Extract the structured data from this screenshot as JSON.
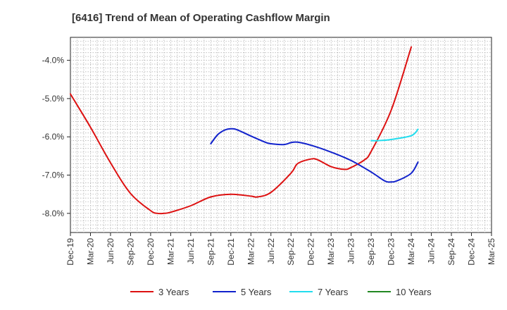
{
  "chart_data": {
    "type": "line",
    "title": "[6416]  Trend of Mean of Operating Cashflow Margin",
    "xlabel": "",
    "ylabel": "",
    "x_tick_labels": [
      "Dec-19",
      "Mar-20",
      "Jun-20",
      "Sep-20",
      "Dec-20",
      "Mar-21",
      "Jun-21",
      "Sep-21",
      "Dec-21",
      "Mar-22",
      "Jun-22",
      "Sep-22",
      "Dec-22",
      "Mar-23",
      "Jun-23",
      "Sep-23",
      "Dec-23",
      "Mar-24",
      "Jun-24",
      "Sep-24",
      "Dec-24",
      "Mar-25"
    ],
    "y_tick_labels": [
      "-4.0%",
      "-5.0%",
      "-6.0%",
      "-7.0%",
      "-8.0%"
    ],
    "y_tick_values": [
      -4.0,
      -5.0,
      -6.0,
      -7.0,
      -8.0
    ],
    "ylim": [
      -8.5,
      -3.4
    ],
    "grid": true,
    "legend_position": "bottom",
    "series": [
      {
        "name": "3 Years",
        "color": "#dd1111",
        "points": [
          [
            "Dec-19",
            -4.88
          ],
          [
            "Mar-20",
            -5.75
          ],
          [
            "Jun-20",
            -6.68
          ],
          [
            "Sep-20",
            -7.48
          ],
          [
            "Dec-20",
            -7.93
          ],
          [
            "Jan-21",
            -8.0
          ],
          [
            "Feb-21",
            -8.0
          ],
          [
            "Mar-21",
            -7.97
          ],
          [
            "Jun-21",
            -7.8
          ],
          [
            "Sep-21",
            -7.57
          ],
          [
            "Dec-21",
            -7.5
          ],
          [
            "Mar-22",
            -7.55
          ],
          [
            "Apr-22",
            -7.57
          ],
          [
            "Jun-22",
            -7.45
          ],
          [
            "Sep-22",
            -6.95
          ],
          [
            "Oct-22",
            -6.7
          ],
          [
            "Dec-22",
            -6.58
          ],
          [
            "Jan-23",
            -6.6
          ],
          [
            "Mar-23",
            -6.78
          ],
          [
            "May-23",
            -6.85
          ],
          [
            "Jun-23",
            -6.8
          ],
          [
            "Aug-23",
            -6.6
          ],
          [
            "Sep-23",
            -6.38
          ],
          [
            "Dec-23",
            -5.3
          ],
          [
            "Mar-24",
            -3.65
          ]
        ]
      },
      {
        "name": "5 Years",
        "color": "#1122cc",
        "points": [
          [
            "Sep-21",
            -6.18
          ],
          [
            "Oct-21",
            -5.95
          ],
          [
            "Nov-21",
            -5.83
          ],
          [
            "Dec-21",
            -5.79
          ],
          [
            "Jan-22",
            -5.82
          ],
          [
            "Mar-22",
            -5.98
          ],
          [
            "May-22",
            -6.13
          ],
          [
            "Jun-22",
            -6.18
          ],
          [
            "Aug-22",
            -6.2
          ],
          [
            "Sep-22",
            -6.15
          ],
          [
            "Oct-22",
            -6.14
          ],
          [
            "Dec-22",
            -6.22
          ],
          [
            "Mar-23",
            -6.4
          ],
          [
            "Jun-23",
            -6.62
          ],
          [
            "Sep-23",
            -6.92
          ],
          [
            "Nov-23",
            -7.15
          ],
          [
            "Dec-23",
            -7.18
          ],
          [
            "Jan-24",
            -7.14
          ],
          [
            "Mar-24",
            -6.95
          ],
          [
            "Apr-24",
            -6.66
          ]
        ]
      },
      {
        "name": "7 Years",
        "color": "#22ddee",
        "points": [
          [
            "Sep-23",
            -6.1
          ],
          [
            "Oct-23",
            -6.1
          ],
          [
            "Dec-23",
            -6.07
          ],
          [
            "Mar-24",
            -5.97
          ],
          [
            "Apr-24",
            -5.8
          ]
        ]
      },
      {
        "name": "10 Years",
        "color": "#228822",
        "points": []
      }
    ]
  }
}
